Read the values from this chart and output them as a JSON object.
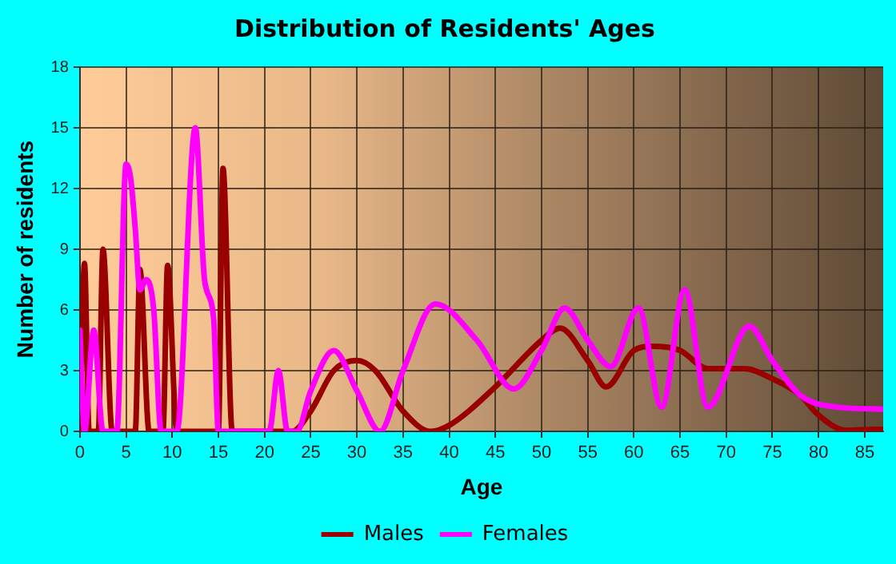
{
  "chart_data": {
    "type": "line",
    "title": "Distribution of Residents' Ages",
    "xlabel": "Age",
    "ylabel": "Number of residents",
    "xlim": [
      0,
      87
    ],
    "xticks": [
      0,
      5,
      10,
      15,
      20,
      25,
      30,
      35,
      40,
      45,
      50,
      55,
      60,
      65,
      70,
      75,
      80,
      85
    ],
    "ylim": [
      0,
      18
    ],
    "yticks": [
      0,
      3,
      6,
      9,
      12,
      15,
      18
    ],
    "grid": true,
    "legend": "bottom",
    "marker": "none",
    "line_style": "solid",
    "series": [
      {
        "name": "Males",
        "color": "#990000",
        "x": [
          0,
          0.5,
          1,
          2,
          2.5,
          3.5,
          6,
          6.5,
          7.5,
          9,
          9.5,
          10.5,
          15,
          15.5,
          16.5,
          22,
          23,
          25,
          27.5,
          30,
          32,
          35,
          38,
          40,
          45,
          50,
          52,
          55,
          57,
          60,
          62,
          65,
          68,
          72,
          75,
          78,
          80,
          83,
          86,
          87
        ],
        "values": [
          0,
          8.3,
          0,
          0,
          9,
          0,
          0,
          8,
          0,
          0,
          8.2,
          0,
          0,
          13,
          0,
          0,
          0,
          1,
          3,
          3.5,
          3,
          1,
          0,
          0.3,
          2.2,
          4.5,
          5.1,
          3.5,
          2.2,
          4,
          4.2,
          4,
          3.1,
          3.1,
          2.6,
          1.8,
          0.8,
          0.05,
          0.1,
          0.1
        ]
      },
      {
        "name": "Females",
        "color": "#ff00ff",
        "x": [
          0,
          0.5,
          1.5,
          2.5,
          4,
          5,
          5.5,
          6,
          6.5,
          7.2,
          8,
          8.8,
          10.5,
          12.5,
          13.5,
          14.5,
          15,
          20.5,
          21.5,
          22.5,
          23.5,
          25,
          27.5,
          30,
          32.5,
          35,
          38.5,
          43,
          47,
          50,
          52.5,
          55,
          57.5,
          60.5,
          63,
          65.5,
          68,
          72.5,
          75,
          78,
          82,
          87
        ],
        "values": [
          5,
          0,
          5,
          0,
          0,
          13.2,
          12.5,
          10,
          7,
          7.5,
          6,
          0,
          0,
          15,
          7.5,
          5.5,
          0,
          0,
          3,
          0,
          0,
          2,
          4,
          2,
          0,
          3,
          6.3,
          4.5,
          2.1,
          4,
          6.1,
          4.5,
          3.2,
          6.1,
          1.2,
          7,
          1.2,
          5.2,
          3.5,
          1.8,
          1.2,
          1.1
        ]
      }
    ]
  }
}
